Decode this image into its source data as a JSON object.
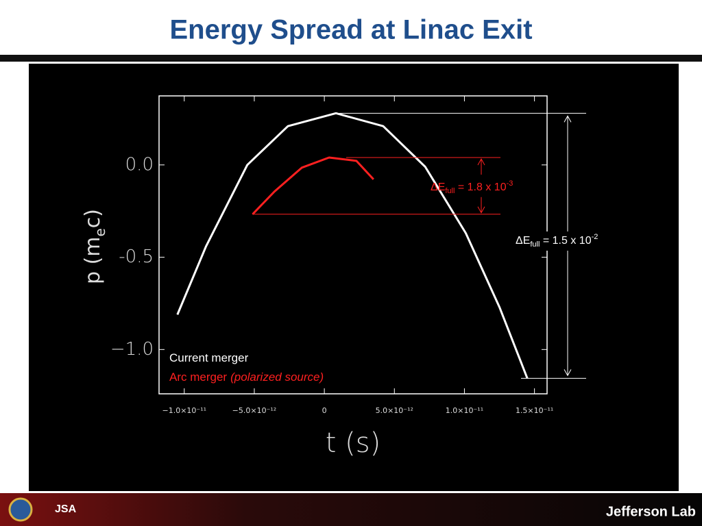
{
  "title": "Energy Spread at Linac Exit",
  "footer": {
    "org_logo": "JSA",
    "lab_logo": "Jefferson Lab"
  },
  "chart_data": {
    "type": "line",
    "x_label": "t (s)",
    "y_label": {
      "base": "p (m",
      "sub": "e",
      "tail": "c)"
    },
    "xlim": [
      -1.18e-11,
      1.59e-11
    ],
    "ylim": [
      -1.24,
      0.374
    ],
    "xticks": [
      {
        "value": -1e-11,
        "label": "−1.0×10⁻¹¹"
      },
      {
        "value": -5e-12,
        "label": "−5.0×10⁻¹²"
      },
      0,
      {
        "value": 5e-12,
        "label": "5.0×10⁻¹²"
      },
      {
        "value": 1e-11,
        "label": "1.0×10⁻¹¹"
      },
      {
        "value": 1.5e-11,
        "label": "1.5×10⁻¹¹"
      }
    ],
    "yticks": [
      {
        "value": 0,
        "label": "0.0"
      },
      -0.5,
      {
        "value": -1,
        "label": "−1.0"
      }
    ],
    "series": [
      {
        "name": "Current merger",
        "color": "#ffffff",
        "x": [
          -1.049e-11,
          -8.44e-12,
          -5.5e-12,
          -2.6e-12,
          8.3e-13,
          4.2e-12,
          7.2e-12,
          1.01e-11,
          1.25e-11,
          1.449e-11
        ],
        "values": [
          -0.811,
          -0.44,
          0.0,
          0.21,
          0.28,
          0.21,
          -0.01,
          -0.37,
          -0.77,
          -1.156
        ]
      },
      {
        "name": "Arc merger",
        "note": "(polarized source)",
        "color": "#ff2020",
        "x": [
          -5.12e-12,
          -3.56e-12,
          -1.61e-12,
          3.4e-13,
          2.29e-12,
          3.51e-12
        ],
        "values": [
          -0.267,
          -0.144,
          -0.015,
          0.04,
          0.022,
          -0.078
        ]
      }
    ],
    "annotations": [
      {
        "delta": "ΔE",
        "sub": "full",
        "text": " = 1.8 x 10",
        "sup": "-3",
        "color": "#ff2020"
      },
      {
        "delta": "ΔE",
        "sub": "full",
        "text": " = 1.5 x 10",
        "sup": "-2",
        "color": "#ffffff"
      }
    ]
  }
}
